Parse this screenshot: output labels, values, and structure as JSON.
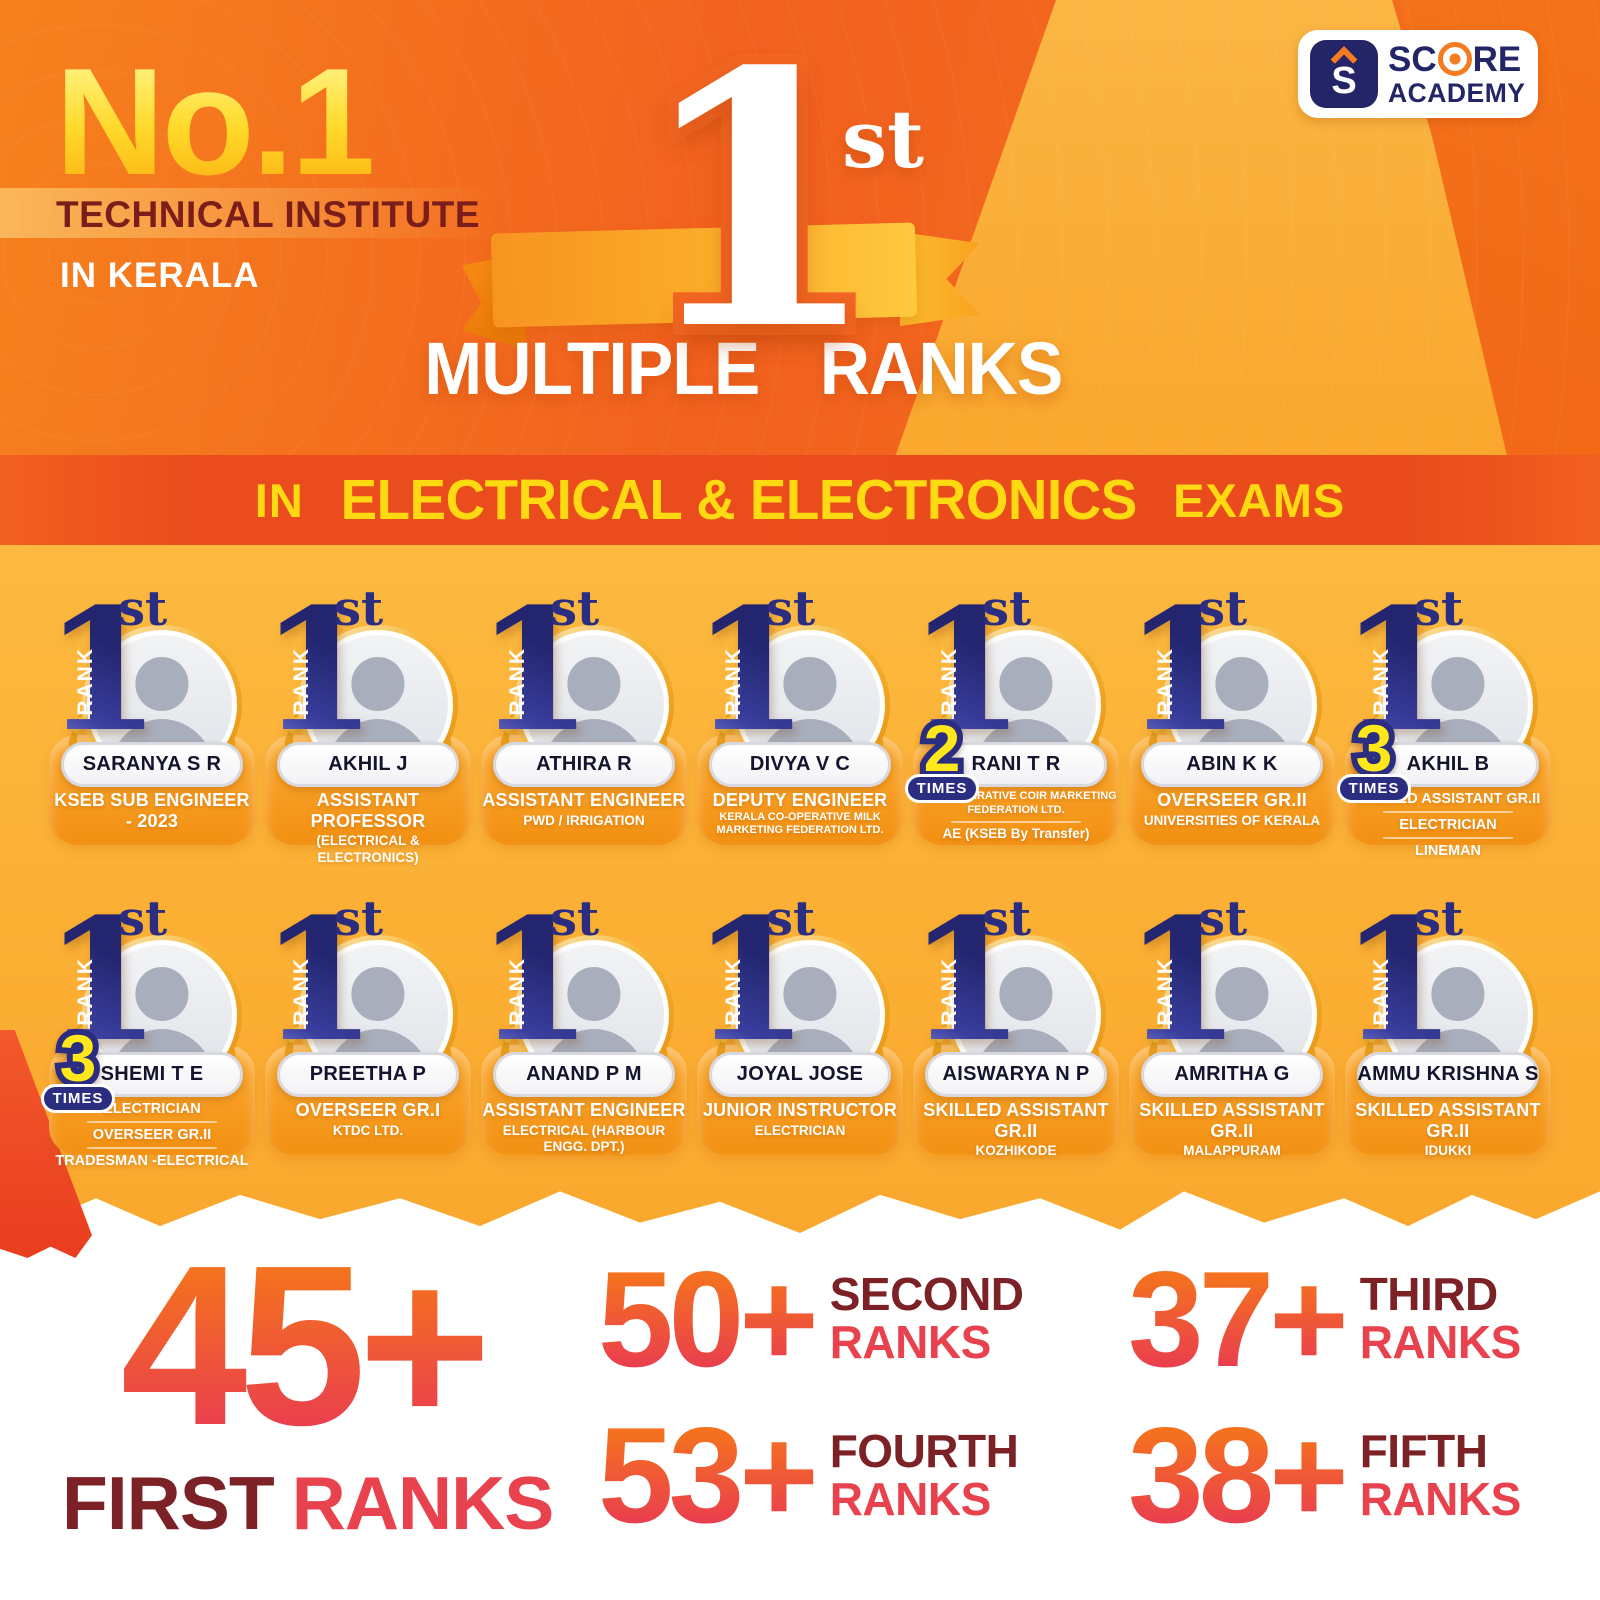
{
  "colors": {
    "navy": "#2b2d84",
    "gold": "#fbb03b",
    "banner_red": "#e94b1c",
    "maroon": "#7c2125",
    "rank_red": "#e8424e",
    "orange": "#f26522",
    "yellow": "#ffd911"
  },
  "header": {
    "no1": "No.1",
    "subtitle": "TECHNICAL INSTITUTE",
    "location": "IN KERALA"
  },
  "logo": {
    "monogram": "S",
    "name_top": "SCORE",
    "name_top_left": "SC",
    "name_top_right": "RE",
    "name_bottom": "ACADEMY"
  },
  "hero": {
    "left_word": "MULTIPLE",
    "number": "1",
    "ordinal": "st",
    "right_word": "RANKS"
  },
  "banner": {
    "prefix": "IN",
    "highlight": "ELECTRICAL & ELECTRONICS",
    "suffix": "EXAMS"
  },
  "card_common": {
    "rank_number": "1",
    "rank_ordinal": "st",
    "rank_word": "RANK",
    "times_word": "TIMES"
  },
  "rows": [
    [
      {
        "name": "SARANYA S R",
        "times": null,
        "dividers": false,
        "roles": [
          {
            "text": "KSEB SUB ENGINEER - 2023",
            "style": "primary"
          }
        ]
      },
      {
        "name": "AKHIL J",
        "times": null,
        "dividers": false,
        "roles": [
          {
            "text": "ASSISTANT PROFESSOR",
            "style": "primary"
          },
          {
            "text": "(ELECTRICAL & ELECTRONICS)",
            "style": "secondary"
          }
        ]
      },
      {
        "name": "ATHIRA R",
        "times": null,
        "dividers": false,
        "roles": [
          {
            "text": "ASSISTANT ENGINEER",
            "style": "primary"
          },
          {
            "text": "PWD / IRRIGATION",
            "style": "secondary"
          }
        ]
      },
      {
        "name": "DIVYA V C",
        "times": null,
        "dividers": false,
        "roles": [
          {
            "text": "DEPUTY ENGINEER",
            "style": "primary"
          },
          {
            "text": "KERALA CO-OPERATIVE MILK MARKETING FEDERATION LTD.",
            "style": "small"
          }
        ]
      },
      {
        "name": "RANI T R",
        "times": "2",
        "dividers": true,
        "roles": [
          {
            "text": "AE CO-OPERATIVE COIR MARKETING FEDERATION LTD.",
            "style": "small"
          },
          {
            "text": "AE (KSEB By Transfer)",
            "style": "secondary"
          }
        ]
      },
      {
        "name": "ABIN K K",
        "times": null,
        "dividers": false,
        "roles": [
          {
            "text": "OVERSEER GR.II",
            "style": "primary"
          },
          {
            "text": "UNIVERSITIES OF KERALA",
            "style": "secondary"
          }
        ]
      },
      {
        "name": "AKHIL B",
        "times": "3",
        "dividers": true,
        "roles": [
          {
            "text": "SKILLED ASSISTANT GR.II",
            "style": "midbold"
          },
          {
            "text": "ELECTRICIAN",
            "style": "midbold"
          },
          {
            "text": "LINEMAN",
            "style": "midbold"
          }
        ]
      }
    ],
    [
      {
        "name": "SHEMI T E",
        "times": "3",
        "dividers": true,
        "roles": [
          {
            "text": "ELECTRICIAN",
            "style": "midbold"
          },
          {
            "text": "OVERSEER GR.II",
            "style": "midbold"
          },
          {
            "text": "TRADESMAN -ELECTRICAL",
            "style": "midbold"
          }
        ]
      },
      {
        "name": "PREETHA P",
        "times": null,
        "dividers": false,
        "roles": [
          {
            "text": "OVERSEER GR.I",
            "style": "primary"
          },
          {
            "text": "KTDC LTD.",
            "style": "secondary"
          }
        ]
      },
      {
        "name": "ANAND P M",
        "times": null,
        "dividers": false,
        "roles": [
          {
            "text": "ASSISTANT ENGINEER",
            "style": "primary"
          },
          {
            "text": "ELECTRICAL (HARBOUR ENGG. DPT.)",
            "style": "secondary"
          }
        ]
      },
      {
        "name": "JOYAL JOSE",
        "times": null,
        "dividers": false,
        "roles": [
          {
            "text": "JUNIOR INSTRUCTOR",
            "style": "primary"
          },
          {
            "text": "ELECTRICIAN",
            "style": "secondary"
          }
        ]
      },
      {
        "name": "AISWARYA N P",
        "times": null,
        "dividers": false,
        "roles": [
          {
            "text": "SKILLED ASSISTANT GR.II",
            "style": "primary"
          },
          {
            "text": "KOZHIKODE",
            "style": "secondary"
          }
        ]
      },
      {
        "name": "AMRITHA G",
        "times": null,
        "dividers": false,
        "roles": [
          {
            "text": "SKILLED ASSISTANT GR.II",
            "style": "primary"
          },
          {
            "text": "MALAPPURAM",
            "style": "secondary"
          }
        ]
      },
      {
        "name": "AMMU KRISHNA S",
        "times": null,
        "dividers": false,
        "roles": [
          {
            "text": "SKILLED ASSISTANT GR.II",
            "style": "primary"
          },
          {
            "text": "IDUKKI",
            "style": "secondary"
          }
        ]
      }
    ]
  ],
  "stats": {
    "first": {
      "number": "45+",
      "word": "FIRST",
      "ranks": "RANKS"
    },
    "others": [
      {
        "number": "50+",
        "word": "SECOND",
        "ranks": "RANKS"
      },
      {
        "number": "37+",
        "word": "THIRD",
        "ranks": "RANKS"
      },
      {
        "number": "53+",
        "word": "FOURTH",
        "ranks": "RANKS"
      },
      {
        "number": "38+",
        "word": "FIFTH",
        "ranks": "RANKS"
      }
    ]
  }
}
